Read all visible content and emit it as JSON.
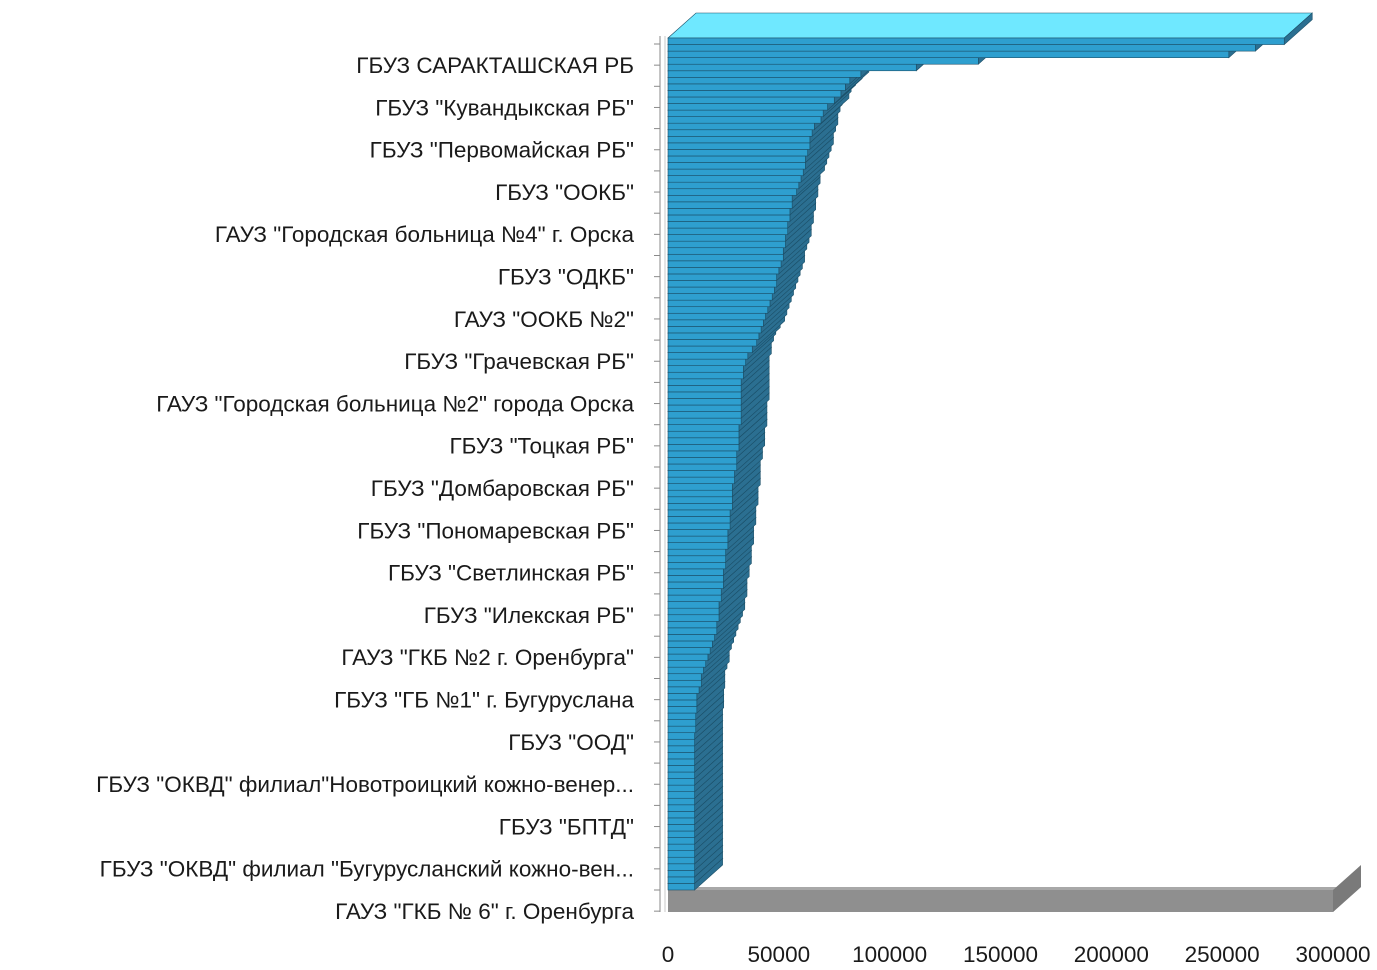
{
  "chart_data": {
    "type": "bar",
    "orientation": "horizontal",
    "style": "3d",
    "xlim": [
      0,
      300000
    ],
    "x_ticks": [
      "0",
      "50000",
      "100000",
      "150000",
      "200000",
      "250000",
      "300000"
    ],
    "category_labels": [
      "ГБУЗ САРАКТАШСКАЯ РБ",
      "ГБУЗ \"Кувандыкская РБ\"",
      "ГБУЗ \"Первомайская РБ\"",
      "ГБУЗ \"ООКБ\"",
      "ГАУЗ \"Городская больница №4\" г. Орска",
      "ГБУЗ \"ОДКБ\"",
      "ГАУЗ \"ООКБ №2\"",
      "ГБУЗ \"Грачевская РБ\"",
      "ГАУЗ \"Городская больница №2\" города Орска",
      "ГБУЗ \"Тоцкая РБ\"",
      "ГБУЗ \"Домбаровская РБ\"",
      "ГБУЗ \"Пономаревская РБ\"",
      "ГБУЗ \"Светлинская РБ\"",
      "ГБУЗ \"Илекская РБ\"",
      "ГАУЗ \"ГКБ №2 г. Оренбурга\"",
      "ГБУЗ \"ГБ №1\" г. Бугуруслана",
      "ГБУЗ \"ООД\"",
      "ГБУЗ \"ОКВД\" филиал\"Новотроицкий кожно-венер...",
      "ГБУЗ \"БПТД\"",
      "ГБУЗ \"ОКВД\" филиал \"Бугурусланский кожно-вен...",
      "ГАУЗ \"ГКБ № 6\" г. Оренбурга"
    ],
    "values": [
      278000,
      265000,
      253000,
      140000,
      112000,
      87000,
      82000,
      80000,
      78000,
      75000,
      72000,
      70000,
      69000,
      66000,
      65000,
      64000,
      64000,
      63000,
      62000,
      62000,
      61000,
      60000,
      59000,
      58000,
      56000,
      56000,
      55000,
      55000,
      54000,
      54000,
      53000,
      53000,
      52000,
      52000,
      51000,
      50000,
      49000,
      49000,
      48000,
      47000,
      46000,
      45000,
      44000,
      43000,
      42000,
      41000,
      40000,
      38000,
      36000,
      35000,
      34000,
      34000,
      33000,
      33000,
      33000,
      33000,
      33000,
      33000,
      33000,
      32000,
      32000,
      32000,
      32000,
      31000,
      31000,
      31000,
      30000,
      30000,
      29000,
      29000,
      29000,
      29000,
      28000,
      28000,
      28000,
      27000,
      27000,
      27000,
      26000,
      26000,
      26000,
      25000,
      25000,
      25000,
      24000,
      24000,
      23000,
      23000,
      23000,
      22000,
      22000,
      21000,
      20000,
      19000,
      18000,
      17000,
      16000,
      15000,
      15000,
      14000,
      13000,
      13000,
      13000,
      12500,
      12500,
      12500,
      12000,
      12000,
      12000,
      12000,
      12000,
      12000,
      12000,
      12000,
      12000,
      12000,
      12000,
      12000,
      12000,
      12000,
      12000,
      12000,
      12000,
      12000,
      12000,
      12000,
      12000,
      12000,
      12000,
      12000
    ],
    "colors": {
      "bar_front": "#2e9fcf",
      "bar_top": "#6fe8ff",
      "bar_side": "#2b6f91",
      "bar_edge": "#1b4f68",
      "floor": "#8f8f8f",
      "floor_top": "#a8a8a8",
      "axis": "#8a8a8a"
    },
    "grid": false,
    "legend": "none"
  }
}
